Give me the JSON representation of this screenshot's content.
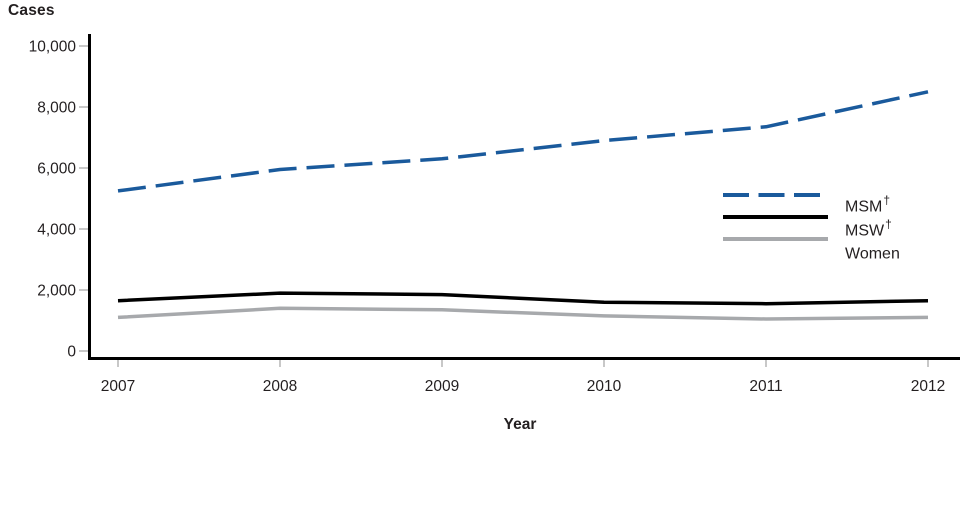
{
  "chart_data": {
    "type": "line",
    "title": "",
    "ylabel": "Cases",
    "xlabel": "Year",
    "categories": [
      "2007",
      "2008",
      "2009",
      "2010",
      "2011",
      "2012"
    ],
    "series": [
      {
        "name": "MSM",
        "sup": "†",
        "color": "#1a5a9c",
        "line_style": "dashed",
        "values": [
          5250,
          5950,
          6300,
          6900,
          7350,
          8500
        ]
      },
      {
        "name": "MSW",
        "sup": "†",
        "color": "#000000",
        "line_style": "solid",
        "values": [
          1650,
          1900,
          1850,
          1600,
          1550,
          1650
        ]
      },
      {
        "name": "Women",
        "sup": "",
        "color": "#a7a9ac",
        "line_style": "solid",
        "values": [
          1100,
          1400,
          1350,
          1150,
          1050,
          1100
        ]
      }
    ],
    "y_ticks": [
      0,
      2000,
      4000,
      6000,
      8000,
      10000
    ],
    "y_tick_labels": [
      "0",
      "2,000",
      "4,000",
      "6,000",
      "8,000",
      "10,000"
    ],
    "ylim": [
      0,
      10000
    ],
    "grid": false,
    "legend_position": "right-middle",
    "axis_color": "#000000",
    "tick_color": "#b6b6b6",
    "text_color": "#231f20"
  }
}
